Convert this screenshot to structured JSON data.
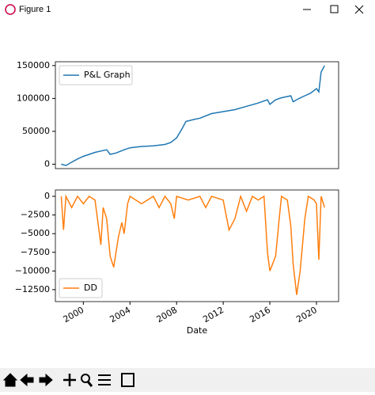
{
  "window": {
    "title": "Figure 1"
  },
  "chart_data": [
    {
      "type": "line",
      "x": [
        1998.1,
        1998.5,
        1999,
        1999.5,
        2000,
        2000.5,
        2001,
        2001.5,
        2002,
        2002.3,
        2002.8,
        2003.5,
        2004,
        2005,
        2006,
        2007,
        2007.5,
        2008,
        2008.5,
        2008.8,
        2009.5,
        2010,
        2011,
        2012,
        2013,
        2014,
        2015,
        2015.8,
        2016,
        2016.5,
        2017,
        2017.8,
        2018,
        2018.5,
        2019,
        2019.5,
        2020,
        2020.2,
        2020.4,
        2020.7
      ],
      "series": [
        {
          "name": "P&L Graph",
          "color": "#1f77b4",
          "values": [
            0,
            -2000,
            3000,
            8000,
            12000,
            15000,
            18000,
            20000,
            22000,
            15000,
            17000,
            22000,
            25000,
            27000,
            28000,
            30000,
            33000,
            40000,
            55000,
            65000,
            68000,
            70000,
            77000,
            80000,
            83000,
            88000,
            93000,
            98000,
            91000,
            98000,
            101000,
            104000,
            95000,
            100000,
            104000,
            108000,
            115000,
            110000,
            140000,
            150000
          ]
        }
      ],
      "xlim": [
        1997.6,
        2021.9
      ],
      "ylim": [
        -6700,
        155800
      ],
      "yticks": [
        0,
        50000,
        100000,
        150000
      ],
      "legend": "upper left"
    },
    {
      "type": "line",
      "x": [
        1998.1,
        1998.3,
        1998.5,
        1999,
        1999.5,
        2000,
        2000.5,
        2001,
        2001.5,
        2001.7,
        2002,
        2002.3,
        2002.6,
        2003,
        2003.3,
        2003.5,
        2003.8,
        2004,
        2005,
        2006,
        2006.5,
        2007,
        2007.5,
        2007.8,
        2008,
        2009,
        2010,
        2010.5,
        2011,
        2012,
        2012.5,
        2013,
        2013.5,
        2014,
        2014.5,
        2015,
        2015.5,
        2015.8,
        2016,
        2016.5,
        2016.8,
        2017,
        2017.5,
        2017.8,
        2018,
        2018.3,
        2018.6,
        2019,
        2019.3,
        2019.8,
        2020,
        2020.2,
        2020.4,
        2020.7
      ],
      "series": [
        {
          "name": "DD",
          "color": "#ff7f0e",
          "values": [
            0,
            -4500,
            0,
            -1500,
            0,
            -1000,
            0,
            -500,
            -6500,
            -1500,
            -3000,
            -8000,
            -9500,
            -5500,
            -3500,
            -5000,
            -1000,
            0,
            -1000,
            0,
            -1500,
            0,
            -1000,
            -3000,
            0,
            -500,
            0,
            -1500,
            0,
            -500,
            -4500,
            -3000,
            0,
            -2000,
            0,
            -500,
            0,
            -7500,
            -10000,
            -8000,
            -3000,
            0,
            -500,
            -4000,
            -9000,
            -13200,
            -10000,
            -3000,
            0,
            -500,
            -1000,
            -8500,
            0,
            -1500
          ]
        }
      ],
      "xlim": [
        1997.6,
        2021.9
      ],
      "ylim": [
        -14100,
        850
      ],
      "yticks": [
        0,
        {
          "value": -2500,
          "label": "−2500"
        },
        {
          "value": -5000,
          "label": "−5000"
        },
        {
          "value": -7500,
          "label": "−7500"
        },
        {
          "value": -10000,
          "label": "−10000"
        },
        {
          "value": -12500,
          "label": "−12500"
        }
      ],
      "xticks": [
        2000,
        2004,
        2008,
        2012,
        2016,
        2020
      ],
      "xlabel": "Date",
      "legend": "lower left"
    }
  ]
}
